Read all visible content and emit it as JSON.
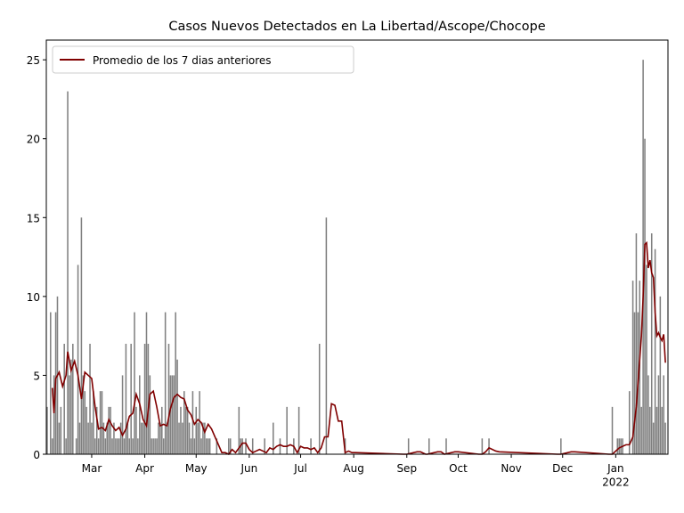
{
  "chart_data": {
    "type": "bar_line",
    "title": "Casos Nuevos Detectados en La Libertad/Ascope/Chocope",
    "legend": "upper left",
    "xlim": [
      1.5,
      364.5
    ],
    "xticks": [
      {
        "value": 28,
        "label": "Mar"
      },
      {
        "value": 59,
        "label": "Apr"
      },
      {
        "value": 89,
        "label": "May"
      },
      {
        "value": 120,
        "label": "Jun"
      },
      {
        "value": 150,
        "label": "Jul"
      },
      {
        "value": 181,
        "label": "Aug"
      },
      {
        "value": 212,
        "label": "Sep"
      },
      {
        "value": 242,
        "label": "Oct"
      },
      {
        "value": 273,
        "label": "Nov"
      },
      {
        "value": 303,
        "label": "Dec"
      },
      {
        "value": 334,
        "label": "Jan\n2022"
      }
    ],
    "ylim": [
      0,
      26.25
    ],
    "yticks": [
      0,
      5,
      10,
      15,
      20,
      25
    ],
    "bars": {
      "color": "#808080",
      "x": [
        2,
        4,
        5,
        6,
        7,
        8,
        9,
        10,
        12,
        13,
        14,
        15,
        16,
        17,
        19,
        20,
        21,
        22,
        23,
        24,
        25,
        26,
        27,
        28,
        29,
        30,
        31,
        32,
        33,
        34,
        35,
        36,
        37,
        38,
        39,
        40,
        41,
        42,
        43,
        44,
        45,
        46,
        47,
        48,
        49,
        50,
        51,
        52,
        53,
        54,
        55,
        56,
        57,
        58,
        59,
        60,
        61,
        62,
        63,
        64,
        65,
        66,
        67,
        68,
        69,
        70,
        71,
        72,
        73,
        74,
        75,
        76,
        77,
        78,
        79,
        80,
        81,
        82,
        83,
        84,
        85,
        86,
        87,
        88,
        89,
        90,
        91,
        92,
        93,
        94,
        95,
        96,
        97,
        101,
        108,
        109,
        114,
        115,
        116,
        118,
        122,
        129,
        134,
        138,
        142,
        146,
        149,
        156,
        161,
        165,
        176,
        213,
        225,
        235,
        256,
        260,
        302,
        332,
        335,
        336,
        337,
        338,
        342,
        344,
        345,
        346,
        347,
        348,
        349,
        350,
        351,
        352,
        353,
        354,
        355,
        356,
        357,
        358,
        359,
        360,
        361,
        362,
        363
      ],
      "values": [
        3,
        9,
        1,
        5,
        9,
        10,
        2,
        3,
        7,
        1,
        23,
        5,
        6,
        7,
        1,
        12,
        2,
        15,
        5,
        4,
        3,
        2,
        7,
        2,
        4,
        1,
        3,
        1,
        4,
        4,
        2,
        1,
        2,
        3,
        3,
        1,
        2,
        1,
        1,
        1,
        2,
        5,
        1,
        7,
        2,
        1,
        7,
        1,
        9,
        3,
        1,
        5,
        2,
        2,
        7,
        9,
        7,
        5,
        1,
        1,
        1,
        1,
        2,
        2,
        3,
        1,
        9,
        2,
        7,
        5,
        5,
        5,
        9,
        6,
        2,
        3,
        2,
        4,
        3,
        3,
        2,
        1,
        4,
        1,
        3,
        2,
        4,
        1,
        2,
        2,
        1,
        1,
        1,
        1,
        1,
        1,
        3,
        1,
        1,
        1,
        1,
        1,
        2,
        1,
        3,
        1,
        3,
        1,
        7,
        15,
        1,
        1,
        1,
        1,
        1,
        1,
        1,
        3,
        1,
        1,
        1,
        1,
        4,
        11,
        9,
        14,
        9,
        11,
        3,
        25,
        20,
        12,
        5,
        3,
        14,
        2,
        13,
        3,
        5,
        10,
        3,
        5,
        2
      ]
    },
    "series": [
      {
        "name": "Promedio de los 7 dias anteriores",
        "color": "#800000",
        "x": [
          5,
          6,
          7,
          9,
          11,
          13,
          14,
          16,
          18,
          20,
          22,
          24,
          26,
          28,
          30,
          32,
          34,
          36,
          38,
          40,
          42,
          44,
          46,
          48,
          50,
          52,
          54,
          56,
          58,
          60,
          62,
          64,
          66,
          68,
          70,
          72,
          74,
          76,
          78,
          80,
          82,
          84,
          86,
          88,
          90,
          92,
          94,
          96,
          98,
          100,
          102,
          104,
          106,
          108,
          110,
          112,
          114,
          116,
          118,
          120,
          122,
          124,
          126,
          128,
          130,
          132,
          134,
          136,
          138,
          140,
          142,
          144,
          146,
          148,
          150,
          152,
          154,
          156,
          158,
          160,
          162,
          164,
          166,
          168,
          170,
          172,
          174,
          176,
          178,
          180,
          182,
          210,
          212,
          218,
          220,
          223,
          224,
          230,
          232,
          234,
          240,
          242,
          254,
          256,
          258,
          260,
          264,
          266,
          300,
          302,
          308,
          310,
          330,
          332,
          336,
          340,
          342,
          344,
          346,
          348,
          349,
          350,
          351,
          352,
          353,
          354,
          355,
          356,
          357,
          358,
          359,
          360,
          361,
          362,
          363
        ],
        "values": [
          4.2,
          2.6,
          4.8,
          5.2,
          4.3,
          5.0,
          6.5,
          5.3,
          5.9,
          5.0,
          3.5,
          5.2,
          5.0,
          4.8,
          3.0,
          1.6,
          1.7,
          1.5,
          2.2,
          1.8,
          1.5,
          1.7,
          1.2,
          1.6,
          2.4,
          2.6,
          3.8,
          3.2,
          2.2,
          1.8,
          3.8,
          4.0,
          3.0,
          1.8,
          1.9,
          1.8,
          2.9,
          3.6,
          3.8,
          3.6,
          3.5,
          2.8,
          2.5,
          1.9,
          2.2,
          2.0,
          1.4,
          1.9,
          1.6,
          1.1,
          0.6,
          0.1,
          0.1,
          0,
          0.3,
          0.1,
          0.4,
          0.7,
          0.7,
          0.3,
          0.1,
          0.2,
          0.3,
          0.2,
          0.1,
          0.4,
          0.3,
          0.5,
          0.6,
          0.5,
          0.5,
          0.6,
          0.5,
          0.1,
          0.5,
          0.4,
          0.4,
          0.3,
          0.4,
          0.1,
          0.4,
          1.1,
          1.1,
          3.2,
          3.1,
          2.1,
          2.1,
          0.1,
          0.2,
          0.1,
          0.1,
          0,
          0,
          0.15,
          0.15,
          0,
          0,
          0.15,
          0.15,
          0,
          0.15,
          0.15,
          0,
          0,
          0.15,
          0.4,
          0.2,
          0.15,
          0,
          0,
          0.15,
          0.15,
          0,
          0,
          0.4,
          0.6,
          0.6,
          1.1,
          3.0,
          6.0,
          7.5,
          10,
          13.3,
          13.4,
          11.8,
          12.3,
          11.5,
          11.2,
          9.0,
          7.5,
          7.7,
          7.4,
          7.2,
          7.6,
          5.8
        ]
      }
    ]
  }
}
